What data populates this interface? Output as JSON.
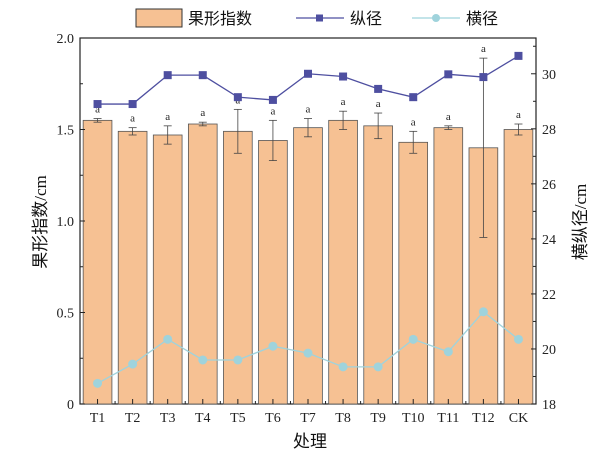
{
  "chart_data": {
    "type": "bar",
    "categories": [
      "T1",
      "T2",
      "T3",
      "T4",
      "T5",
      "T6",
      "T7",
      "T8",
      "T9",
      "T10",
      "T11",
      "T12",
      "CK"
    ],
    "xlabel": "处理",
    "ylabel_left": "果形指数",
    "ylabel_left_unit": "/cm",
    "ylabel_right": "横纵径",
    "ylabel_right_unit": "/cm",
    "ylim_left": [
      0,
      2.0
    ],
    "yticks_left": [
      "0",
      "0.5",
      "1.0",
      "1.5",
      "2.0"
    ],
    "ylim_right": [
      18,
      31.3
    ],
    "yticks_right": [
      "18",
      "20",
      "22",
      "24",
      "26",
      "28",
      "30"
    ],
    "grid": false,
    "legend_position": "top",
    "bar_series": {
      "name": "果形指数",
      "color": "#f6c193",
      "values": [
        1.55,
        1.49,
        1.47,
        1.53,
        1.49,
        1.44,
        1.51,
        1.55,
        1.52,
        1.43,
        1.51,
        1.4,
        1.5
      ],
      "errors": [
        0.01,
        0.02,
        0.05,
        0.01,
        0.12,
        0.11,
        0.05,
        0.05,
        0.07,
        0.06,
        0.01,
        0.49,
        0.03
      ],
      "labels": [
        "a",
        "a",
        "a",
        "a",
        "a",
        "a",
        "a",
        "a",
        "a",
        "a",
        "a",
        "a",
        "a"
      ]
    },
    "line_series": [
      {
        "name": "纵径",
        "color": "#4e4fa0",
        "marker": "square",
        "values": [
          28.9,
          28.9,
          29.95,
          29.95,
          29.15,
          29.05,
          30.0,
          29.9,
          29.45,
          29.15,
          29.98,
          29.88,
          30.65
        ]
      },
      {
        "name": "横径",
        "color": "#9fd3dc",
        "marker": "circle",
        "values": [
          18.75,
          19.45,
          20.35,
          19.6,
          19.6,
          20.1,
          19.85,
          19.35,
          19.35,
          20.35,
          19.9,
          21.35,
          20.35
        ]
      }
    ]
  }
}
